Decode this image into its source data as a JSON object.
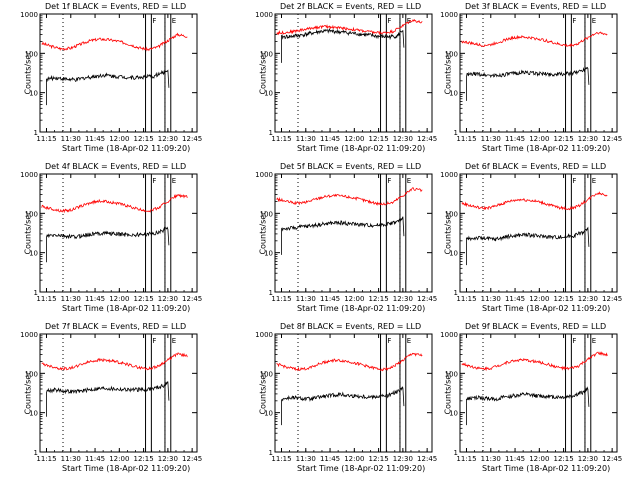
{
  "chart_data": [
    {
      "type": "line",
      "title": "Det 1f BLACK = Events, RED = LLD",
      "xlabel": "Start Time (18-Apr-02 11:09:20)",
      "ylabel": "Counts/sec",
      "scale": "log",
      "ylim": [
        1,
        1000
      ],
      "xlim": [
        11.183,
        12.8
      ],
      "x_ticks": [
        "11:15",
        "11:30",
        "11:45",
        "12:00",
        "12:15",
        "12:30",
        "12:45"
      ],
      "y_ticks": [
        "1",
        "10",
        "100",
        "1000"
      ],
      "dotted_lines": [
        11.42,
        12.47
      ],
      "markers": [
        {
          "label": "F",
          "range": [
            12.27,
            12.33
          ]
        },
        {
          "label": "E",
          "range": [
            12.47,
            12.53
          ]
        }
      ],
      "series": [
        {
          "name": "LLD",
          "color": "#ff0000",
          "x": [
            11.2,
            11.3,
            11.4,
            11.5,
            11.6,
            11.7,
            11.8,
            11.9,
            12.0,
            12.1,
            12.2,
            12.3,
            12.4,
            12.5,
            12.6,
            12.7
          ],
          "values": [
            180,
            150,
            130,
            135,
            170,
            210,
            230,
            220,
            200,
            170,
            140,
            125,
            145,
            210,
            300,
            270
          ]
        },
        {
          "name": "Events",
          "color": "#000000",
          "x": [
            11.25,
            11.35,
            11.45,
            11.55,
            11.65,
            11.75,
            11.85,
            11.95,
            12.05,
            12.15,
            12.25,
            12.35,
            12.45,
            12.5
          ],
          "values": [
            22,
            24,
            22,
            21,
            24,
            26,
            28,
            26,
            25,
            24,
            25,
            26,
            32,
            38
          ]
        }
      ]
    },
    {
      "type": "line",
      "title": "Det 2f BLACK = Events, RED = LLD",
      "xlabel": "Start Time (18-Apr-02 11:09:20)",
      "ylabel": "Counts/sec",
      "scale": "log",
      "ylim": [
        1,
        1000
      ],
      "xlim": [
        11.183,
        12.8
      ],
      "x_ticks": [
        "11:15",
        "11:30",
        "11:45",
        "12:00",
        "12:15",
        "12:30",
        "12:45"
      ],
      "y_ticks": [
        "1",
        "10",
        "100",
        "1000"
      ],
      "dotted_lines": [
        11.42,
        12.47
      ],
      "markers": [
        {
          "label": "F",
          "range": [
            12.27,
            12.33
          ]
        },
        {
          "label": "E",
          "range": [
            12.47,
            12.53
          ]
        }
      ],
      "series": [
        {
          "name": "LLD",
          "color": "#ff0000",
          "x": [
            11.2,
            11.3,
            11.4,
            11.5,
            11.6,
            11.7,
            11.8,
            11.9,
            12.0,
            12.1,
            12.2,
            12.3,
            12.4,
            12.5,
            12.6,
            12.7
          ],
          "values": [
            330,
            340,
            370,
            410,
            460,
            480,
            460,
            430,
            400,
            370,
            340,
            330,
            360,
            500,
            700,
            600
          ]
        },
        {
          "name": "Events",
          "color": "#000000",
          "x": [
            11.25,
            11.35,
            11.45,
            11.55,
            11.65,
            11.75,
            11.85,
            11.95,
            12.05,
            12.15,
            12.25,
            12.35,
            12.45,
            12.5
          ],
          "values": [
            260,
            270,
            290,
            320,
            360,
            370,
            350,
            330,
            310,
            290,
            270,
            260,
            280,
            400
          ]
        }
      ]
    },
    {
      "type": "line",
      "title": "Det 3f BLACK = Events, RED = LLD",
      "xlabel": "Start Time (18-Apr-02 11:09:20)",
      "ylabel": "Counts/sec",
      "scale": "log",
      "ylim": [
        1,
        1000
      ],
      "xlim": [
        11.183,
        12.8
      ],
      "x_ticks": [
        "11:15",
        "11:30",
        "11:45",
        "12:00",
        "12:15",
        "12:30",
        "12:45"
      ],
      "y_ticks": [
        "1",
        "10",
        "100",
        "1000"
      ],
      "dotted_lines": [
        11.42,
        12.47
      ],
      "markers": [
        {
          "label": "F",
          "range": [
            12.27,
            12.33
          ]
        },
        {
          "label": "E",
          "range": [
            12.47,
            12.53
          ]
        }
      ],
      "series": [
        {
          "name": "LLD",
          "color": "#ff0000",
          "x": [
            11.2,
            11.3,
            11.4,
            11.5,
            11.6,
            11.7,
            11.8,
            11.9,
            12.0,
            12.1,
            12.2,
            12.3,
            12.4,
            12.5,
            12.6,
            12.7
          ],
          "values": [
            200,
            180,
            160,
            165,
            200,
            240,
            260,
            250,
            230,
            200,
            170,
            155,
            175,
            250,
            340,
            300
          ]
        },
        {
          "name": "Events",
          "color": "#000000",
          "x": [
            11.25,
            11.35,
            11.45,
            11.55,
            11.65,
            11.75,
            11.85,
            11.95,
            12.05,
            12.15,
            12.25,
            12.35,
            12.45,
            12.5
          ],
          "values": [
            28,
            30,
            28,
            27,
            29,
            31,
            33,
            31,
            30,
            29,
            30,
            31,
            38,
            45
          ]
        }
      ]
    },
    {
      "type": "line",
      "title": "Det 4f BLACK = Events, RED = LLD",
      "xlabel": "Start Time (18-Apr-02 11:09:20)",
      "ylabel": "Counts/sec",
      "scale": "log",
      "ylim": [
        1,
        1000
      ],
      "xlim": [
        11.183,
        12.8
      ],
      "x_ticks": [
        "11:15",
        "11:30",
        "11:45",
        "12:00",
        "12:15",
        "12:30",
        "12:45"
      ],
      "y_ticks": [
        "1",
        "10",
        "100",
        "1000"
      ],
      "dotted_lines": [
        11.42,
        12.47
      ],
      "markers": [
        {
          "label": "F",
          "range": [
            12.27,
            12.33
          ]
        },
        {
          "label": "E",
          "range": [
            12.47,
            12.53
          ]
        }
      ],
      "series": [
        {
          "name": "LLD",
          "color": "#ff0000",
          "x": [
            11.2,
            11.3,
            11.4,
            11.5,
            11.6,
            11.7,
            11.8,
            11.9,
            12.0,
            12.1,
            12.2,
            12.3,
            12.4,
            12.5,
            12.6,
            12.7
          ],
          "values": [
            150,
            130,
            115,
            120,
            150,
            185,
            205,
            195,
            175,
            150,
            125,
            115,
            135,
            200,
            290,
            260
          ]
        },
        {
          "name": "Events",
          "color": "#000000",
          "x": [
            11.25,
            11.35,
            11.45,
            11.55,
            11.65,
            11.75,
            11.85,
            11.95,
            12.05,
            12.15,
            12.25,
            12.35,
            12.45,
            12.5
          ],
          "values": [
            26,
            28,
            26,
            25,
            28,
            30,
            32,
            30,
            29,
            28,
            29,
            30,
            37,
            44
          ]
        }
      ]
    },
    {
      "type": "line",
      "title": "Det 5f BLACK = Events, RED = LLD",
      "xlabel": "Start Time (18-Apr-02 11:09:20)",
      "ylabel": "Counts/sec",
      "scale": "log",
      "ylim": [
        1,
        1000
      ],
      "xlim": [
        11.183,
        12.8
      ],
      "x_ticks": [
        "11:15",
        "11:30",
        "11:45",
        "12:00",
        "12:15",
        "12:30",
        "12:45"
      ],
      "y_ticks": [
        "1",
        "10",
        "100",
        "1000"
      ],
      "dotted_lines": [
        11.42,
        12.47
      ],
      "markers": [
        {
          "label": "F",
          "range": [
            12.27,
            12.33
          ]
        },
        {
          "label": "E",
          "range": [
            12.47,
            12.53
          ]
        }
      ],
      "series": [
        {
          "name": "LLD",
          "color": "#ff0000",
          "x": [
            11.2,
            11.3,
            11.4,
            11.5,
            11.6,
            11.7,
            11.8,
            11.9,
            12.0,
            12.1,
            12.2,
            12.3,
            12.4,
            12.5,
            12.6,
            12.7
          ],
          "values": [
            230,
            200,
            180,
            190,
            230,
            270,
            285,
            270,
            245,
            215,
            185,
            170,
            190,
            280,
            420,
            380
          ]
        },
        {
          "name": "Events",
          "color": "#000000",
          "x": [
            11.25,
            11.35,
            11.45,
            11.55,
            11.65,
            11.75,
            11.85,
            11.95,
            12.05,
            12.15,
            12.25,
            12.35,
            12.45,
            12.5
          ],
          "values": [
            40,
            42,
            45,
            48,
            52,
            56,
            58,
            55,
            52,
            50,
            50,
            54,
            62,
            75
          ]
        }
      ]
    },
    {
      "type": "line",
      "title": "Det 6f BLACK = Events, RED = LLD",
      "xlabel": "Start Time (18-Apr-02 11:09:20)",
      "ylabel": "Counts/sec",
      "scale": "log",
      "ylim": [
        1,
        1000
      ],
      "xlim": [
        11.183,
        12.8
      ],
      "x_ticks": [
        "11:15",
        "11:30",
        "11:45",
        "12:00",
        "12:15",
        "12:30",
        "12:45"
      ],
      "y_ticks": [
        "1",
        "10",
        "100",
        "1000"
      ],
      "dotted_lines": [
        11.42,
        12.47
      ],
      "markers": [
        {
          "label": "F",
          "range": [
            12.27,
            12.33
          ]
        },
        {
          "label": "E",
          "range": [
            12.47,
            12.53
          ]
        }
      ],
      "series": [
        {
          "name": "LLD",
          "color": "#ff0000",
          "x": [
            11.2,
            11.3,
            11.4,
            11.5,
            11.6,
            11.7,
            11.8,
            11.9,
            12.0,
            12.1,
            12.2,
            12.3,
            12.4,
            12.5,
            12.6,
            12.7
          ],
          "values": [
            180,
            155,
            135,
            140,
            170,
            205,
            225,
            215,
            195,
            165,
            140,
            130,
            150,
            220,
            330,
            290
          ]
        },
        {
          "name": "Events",
          "color": "#000000",
          "x": [
            11.25,
            11.35,
            11.45,
            11.55,
            11.65,
            11.75,
            11.85,
            11.95,
            12.05,
            12.15,
            12.25,
            12.35,
            12.45,
            12.5
          ],
          "values": [
            22,
            24,
            23,
            22,
            25,
            27,
            29,
            27,
            26,
            25,
            25,
            27,
            33,
            40
          ]
        }
      ]
    },
    {
      "type": "line",
      "title": "Det 7f BLACK = Events, RED = LLD",
      "xlabel": "Start Time (18-Apr-02 11:09:20)",
      "ylabel": "Counts/sec",
      "scale": "log",
      "ylim": [
        1,
        1000
      ],
      "xlim": [
        11.183,
        12.8
      ],
      "x_ticks": [
        "11:15",
        "11:30",
        "11:45",
        "12:00",
        "12:15",
        "12:30",
        "12:45"
      ],
      "y_ticks": [
        "1",
        "10",
        "100",
        "1000"
      ],
      "dotted_lines": [
        11.42,
        12.47
      ],
      "markers": [
        {
          "label": "F",
          "range": [
            12.27,
            12.33
          ]
        },
        {
          "label": "E",
          "range": [
            12.47,
            12.53
          ]
        }
      ],
      "series": [
        {
          "name": "LLD",
          "color": "#ff0000",
          "x": [
            11.2,
            11.3,
            11.4,
            11.5,
            11.6,
            11.7,
            11.8,
            11.9,
            12.0,
            12.1,
            12.2,
            12.3,
            12.4,
            12.5,
            12.6,
            12.7
          ],
          "values": [
            175,
            150,
            130,
            135,
            165,
            200,
            220,
            210,
            190,
            165,
            140,
            130,
            150,
            215,
            310,
            280
          ]
        },
        {
          "name": "Events",
          "color": "#000000",
          "x": [
            11.25,
            11.35,
            11.45,
            11.55,
            11.65,
            11.75,
            11.85,
            11.95,
            12.05,
            12.15,
            12.25,
            12.35,
            12.45,
            12.5
          ],
          "values": [
            36,
            38,
            35,
            34,
            37,
            40,
            42,
            40,
            39,
            38,
            39,
            41,
            48,
            58
          ]
        }
      ]
    },
    {
      "type": "line",
      "title": "Det 8f BLACK = Events, RED = LLD",
      "xlabel": "Start Time (18-Apr-02 11:09:20)",
      "ylabel": "Counts/sec",
      "scale": "log",
      "ylim": [
        1,
        1000
      ],
      "xlim": [
        11.183,
        12.8
      ],
      "x_ticks": [
        "11:15",
        "11:30",
        "11:45",
        "12:00",
        "12:15",
        "12:30",
        "12:45"
      ],
      "y_ticks": [
        "1",
        "10",
        "100",
        "1000"
      ],
      "dotted_lines": [
        11.42,
        12.47
      ],
      "markers": [
        {
          "label": "F",
          "range": [
            12.27,
            12.33
          ]
        },
        {
          "label": "E",
          "range": [
            12.47,
            12.53
          ]
        }
      ],
      "series": [
        {
          "name": "LLD",
          "color": "#ff0000",
          "x": [
            11.2,
            11.3,
            11.4,
            11.5,
            11.6,
            11.7,
            11.8,
            11.9,
            12.0,
            12.1,
            12.2,
            12.3,
            12.4,
            12.5,
            12.6,
            12.7
          ],
          "values": [
            170,
            145,
            125,
            130,
            160,
            195,
            215,
            205,
            185,
            160,
            135,
            125,
            145,
            210,
            320,
            280
          ]
        },
        {
          "name": "Events",
          "color": "#000000",
          "x": [
            11.25,
            11.35,
            11.45,
            11.55,
            11.65,
            11.75,
            11.85,
            11.95,
            12.05,
            12.15,
            12.25,
            12.35,
            12.45,
            12.5
          ],
          "values": [
            22,
            24,
            23,
            22,
            25,
            27,
            29,
            27,
            26,
            25,
            26,
            27,
            34,
            42
          ]
        }
      ]
    },
    {
      "type": "line",
      "title": "Det 9f BLACK = Events, RED = LLD",
      "xlabel": "Start Time (18-Apr-02 11:09:20)",
      "ylabel": "Counts/sec",
      "scale": "log",
      "ylim": [
        1,
        1000
      ],
      "xlim": [
        11.183,
        12.8
      ],
      "x_ticks": [
        "11:15",
        "11:30",
        "11:45",
        "12:00",
        "12:15",
        "12:30",
        "12:45"
      ],
      "y_ticks": [
        "1",
        "10",
        "100",
        "1000"
      ],
      "dotted_lines": [
        11.42,
        12.47
      ],
      "markers": [
        {
          "label": "F",
          "range": [
            12.27,
            12.33
          ]
        },
        {
          "label": "E",
          "range": [
            12.47,
            12.53
          ]
        }
      ],
      "series": [
        {
          "name": "LLD",
          "color": "#ff0000",
          "x": [
            11.2,
            11.3,
            11.4,
            11.5,
            11.6,
            11.7,
            11.8,
            11.9,
            12.0,
            12.1,
            12.2,
            12.3,
            12.4,
            12.5,
            12.6,
            12.7
          ],
          "values": [
            175,
            150,
            130,
            135,
            165,
            200,
            220,
            210,
            190,
            165,
            140,
            130,
            150,
            220,
            330,
            290
          ]
        },
        {
          "name": "Events",
          "color": "#000000",
          "x": [
            11.25,
            11.35,
            11.45,
            11.55,
            11.65,
            11.75,
            11.85,
            11.95,
            12.05,
            12.15,
            12.25,
            12.35,
            12.45,
            12.5
          ],
          "values": [
            22,
            24,
            23,
            22,
            25,
            27,
            29,
            27,
            26,
            25,
            25,
            27,
            33,
            40
          ]
        }
      ]
    }
  ]
}
